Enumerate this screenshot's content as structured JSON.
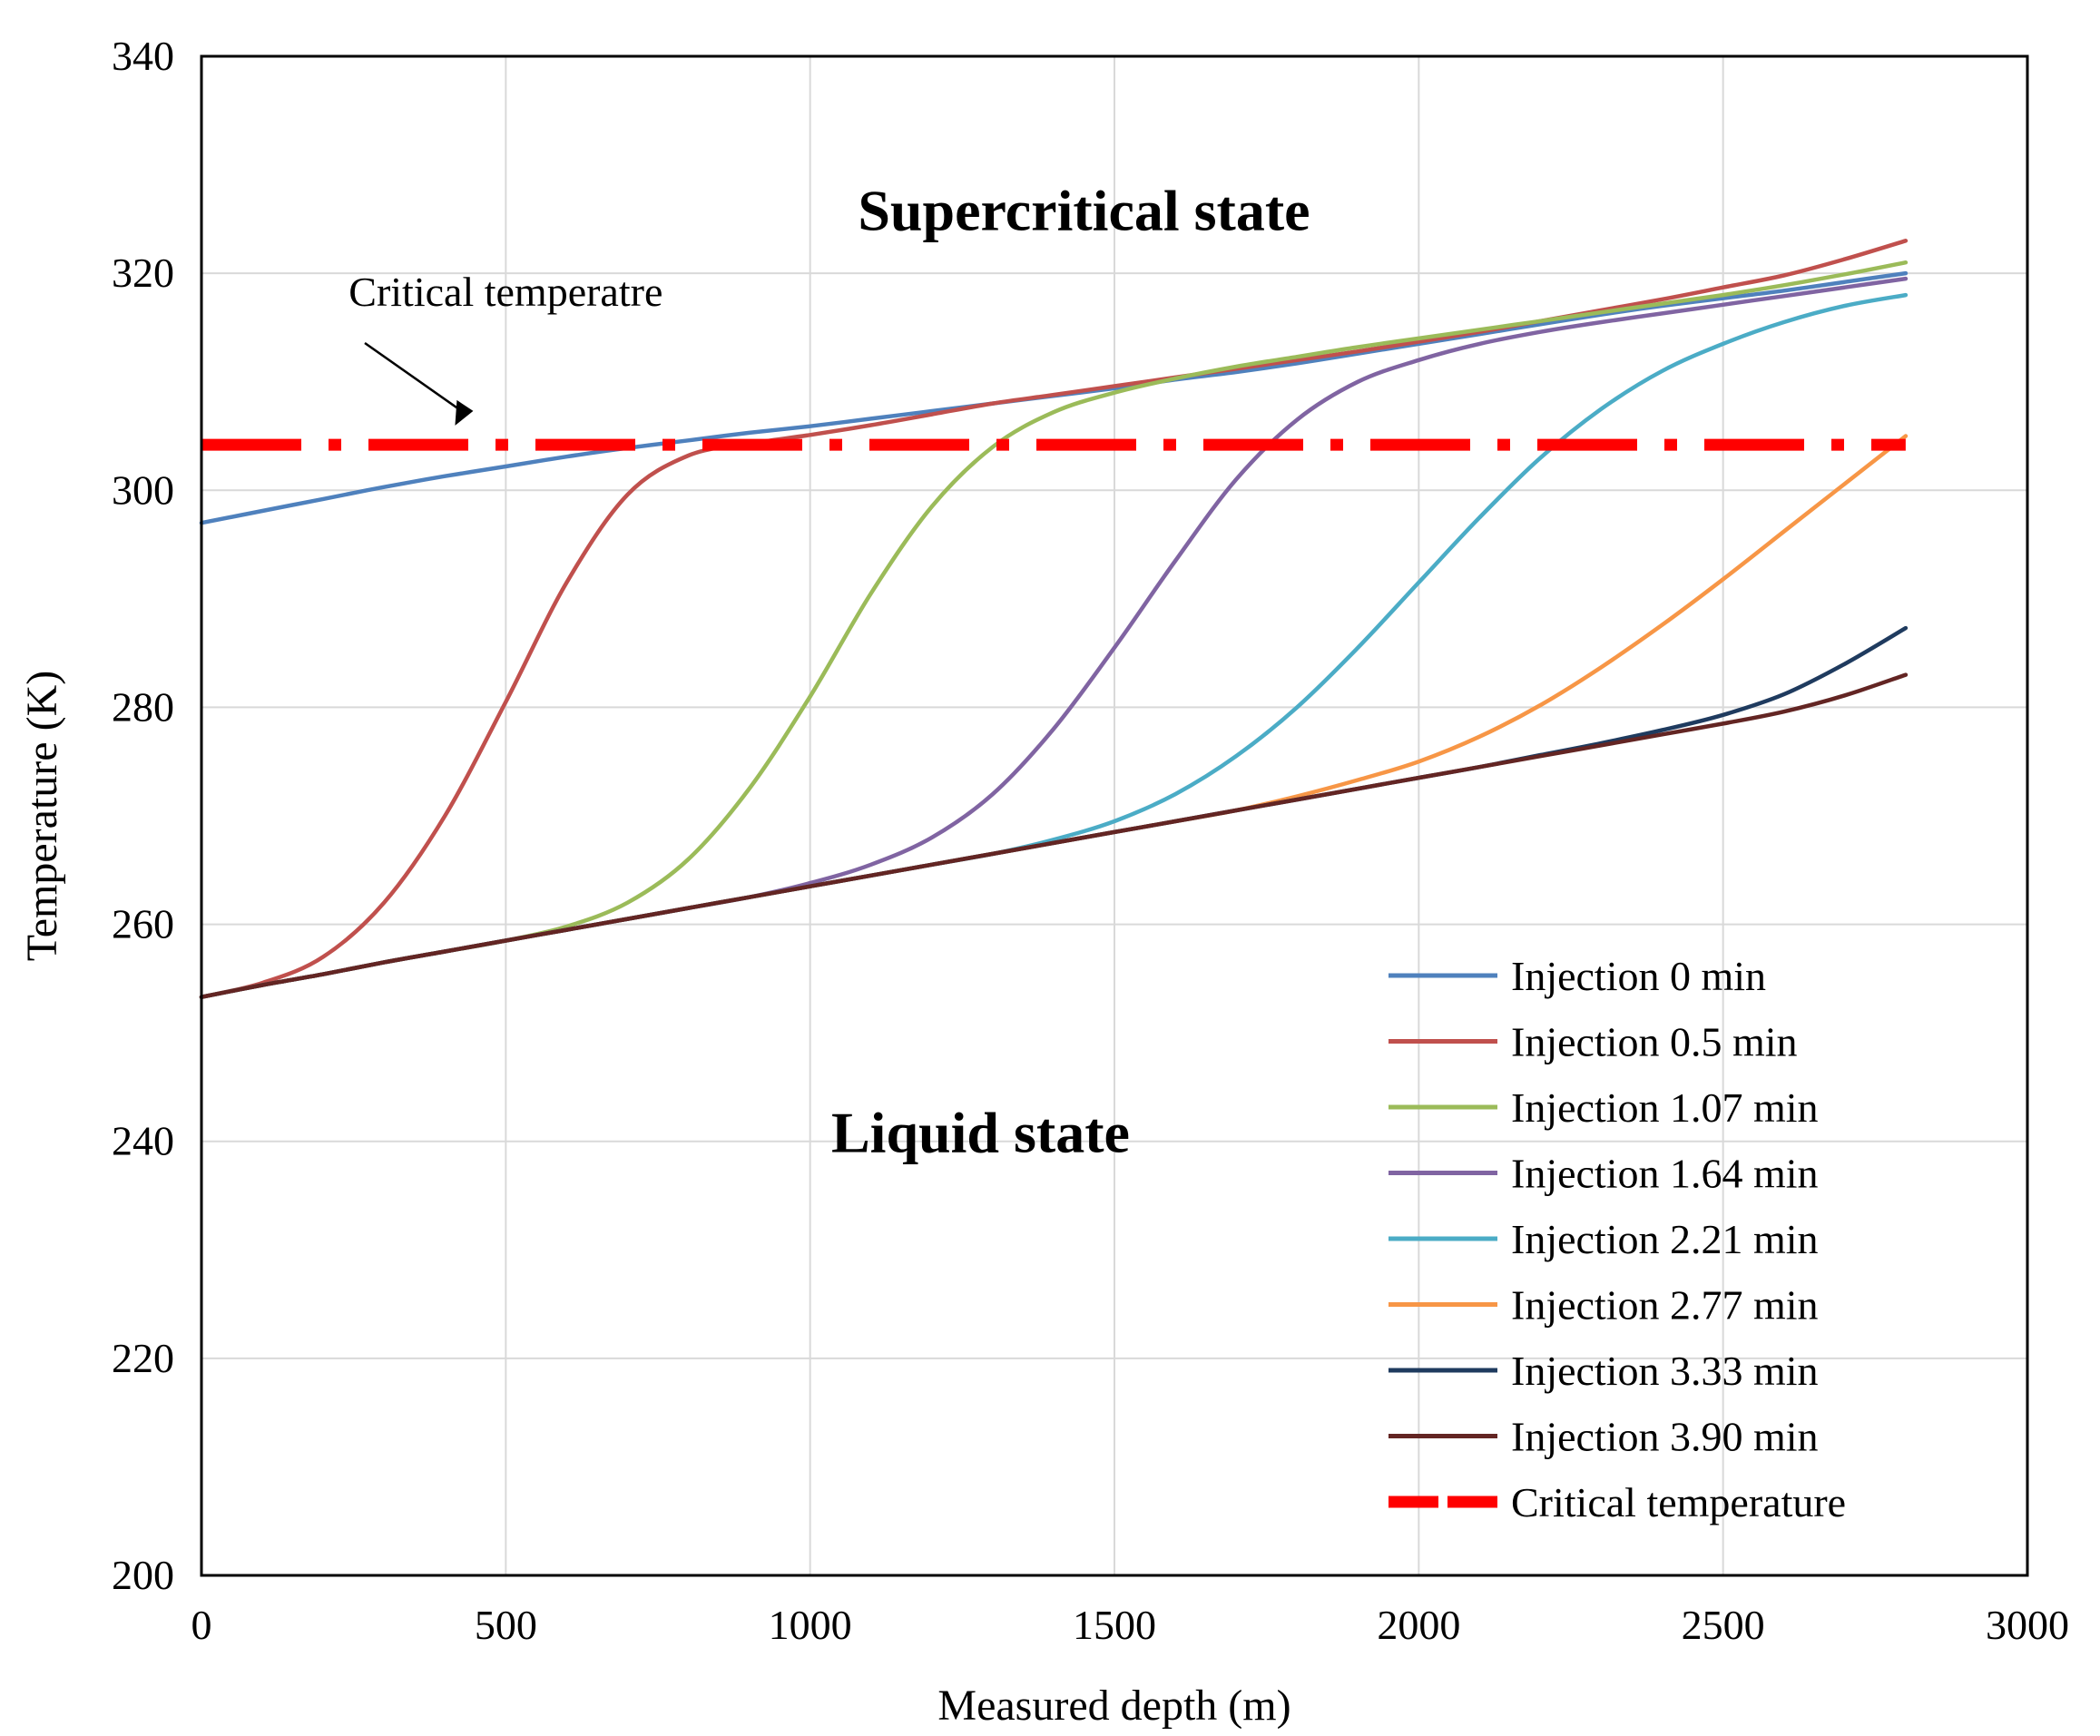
{
  "chart_data": {
    "type": "line",
    "title": "",
    "xlabel": "Measured depth (m)",
    "ylabel": "Temperature (K)",
    "xlim": [
      0,
      3000
    ],
    "ylim": [
      200,
      340
    ],
    "xticks": [
      0,
      500,
      1000,
      1500,
      2000,
      2500,
      3000
    ],
    "yticks": [
      200,
      220,
      240,
      260,
      280,
      300,
      320,
      340
    ],
    "xtick_labels": [
      "0",
      "500",
      "1000",
      "1500",
      "2000",
      "2500",
      "3000"
    ],
    "ytick_labels": [
      "200",
      "220",
      "240",
      "260",
      "280",
      "300",
      "320",
      "340"
    ],
    "grid": true,
    "legend_position": "bottom-right",
    "x": [
      0,
      100,
      200,
      300,
      400,
      500,
      600,
      700,
      800,
      900,
      1000,
      1100,
      1200,
      1300,
      1400,
      1500,
      1600,
      1700,
      1800,
      1900,
      2000,
      2100,
      2200,
      2300,
      2400,
      2500,
      2600,
      2700,
      2800
    ],
    "series": [
      {
        "name": "Injection 0 min",
        "color": "#4f81bd",
        "values": [
          297.0,
          298.1,
          299.2,
          300.3,
          301.3,
          302.2,
          303.1,
          303.9,
          304.6,
          305.3,
          305.9,
          306.6,
          307.3,
          308.0,
          308.7,
          309.4,
          310.2,
          310.9,
          311.7,
          312.6,
          313.5,
          314.4,
          315.3,
          316.2,
          317.0,
          317.7,
          318.4,
          319.2,
          320.0
        ]
      },
      {
        "name": "Injection 0.5 min",
        "color": "#c0504d",
        "values": [
          253.3,
          254.6,
          257.0,
          262.0,
          270.0,
          280.5,
          291.5,
          299.6,
          303.2,
          304.3,
          305.1,
          306.0,
          307.0,
          308.0,
          308.8,
          309.6,
          310.4,
          311.2,
          312.0,
          312.8,
          313.7,
          314.6,
          315.6,
          316.6,
          317.6,
          318.7,
          319.8,
          321.3,
          323.0
        ]
      },
      {
        "name": "Injection 1.07 min",
        "color": "#9bbb59",
        "values": [
          253.3,
          254.4,
          255.4,
          256.5,
          257.5,
          258.5,
          259.8,
          262.0,
          266.0,
          272.5,
          281.0,
          290.5,
          298.5,
          304.0,
          307.2,
          309.0,
          310.3,
          311.4,
          312.3,
          313.2,
          314.0,
          314.8,
          315.6,
          316.4,
          317.2,
          318.0,
          318.9,
          319.9,
          321.0
        ]
      },
      {
        "name": "Injection 1.64 min",
        "color": "#8064a2",
        "values": [
          253.3,
          254.4,
          255.4,
          256.5,
          257.5,
          258.5,
          259.5,
          260.5,
          261.5,
          262.5,
          263.8,
          265.5,
          268.0,
          272.0,
          278.0,
          285.5,
          293.5,
          301.0,
          306.5,
          310.0,
          312.0,
          313.5,
          314.6,
          315.5,
          316.3,
          317.1,
          317.9,
          318.7,
          319.5
        ]
      },
      {
        "name": "Injection 2.21 min",
        "color": "#4bacc6",
        "values": [
          253.3,
          254.4,
          255.4,
          256.5,
          257.5,
          258.5,
          259.5,
          260.5,
          261.5,
          262.5,
          263.5,
          264.5,
          265.5,
          266.5,
          267.8,
          269.5,
          272.0,
          275.5,
          280.0,
          285.5,
          291.5,
          297.5,
          303.0,
          307.5,
          311.0,
          313.5,
          315.5,
          317.0,
          318.0
        ]
      },
      {
        "name": "Injection 2.77 min",
        "color": "#f79646",
        "values": [
          253.3,
          254.4,
          255.4,
          256.5,
          257.5,
          258.5,
          259.5,
          260.5,
          261.5,
          262.5,
          263.5,
          264.5,
          265.5,
          266.5,
          267.5,
          268.5,
          269.5,
          270.5,
          271.8,
          273.3,
          275.0,
          277.3,
          280.2,
          283.7,
          287.6,
          291.8,
          296.2,
          300.6,
          305.0
        ]
      },
      {
        "name": "Injection 3.33 min",
        "color": "#1f3b5f",
        "values": [
          253.3,
          254.4,
          255.4,
          256.5,
          257.5,
          258.5,
          259.5,
          260.5,
          261.5,
          262.5,
          263.5,
          264.5,
          265.5,
          266.5,
          267.5,
          268.5,
          269.5,
          270.5,
          271.5,
          272.5,
          273.5,
          274.5,
          275.6,
          276.7,
          277.9,
          279.3,
          281.2,
          284.0,
          287.3
        ]
      },
      {
        "name": "Injection 3.90 min",
        "color": "#632523",
        "values": [
          253.3,
          254.4,
          255.4,
          256.5,
          257.5,
          258.5,
          259.5,
          260.5,
          261.5,
          262.5,
          263.5,
          264.5,
          265.5,
          266.5,
          267.5,
          268.5,
          269.5,
          270.5,
          271.5,
          272.5,
          273.5,
          274.5,
          275.5,
          276.5,
          277.5,
          278.5,
          279.6,
          281.1,
          283.0
        ]
      },
      {
        "name": "Critical temperature",
        "color": "#ff0000",
        "dash": "dash-dot",
        "constant": 304.2,
        "x_range": [
          0,
          2800
        ]
      }
    ],
    "annotations": [
      {
        "text": "Supercritical  state",
        "x": 1450,
        "y": 324
      },
      {
        "text": "Liquid  state",
        "x": 1280,
        "y": 239
      },
      {
        "text": "Critical temperatre",
        "x": 500,
        "y": 317,
        "arrow_to": [
          190,
          305.3
        ]
      }
    ]
  }
}
